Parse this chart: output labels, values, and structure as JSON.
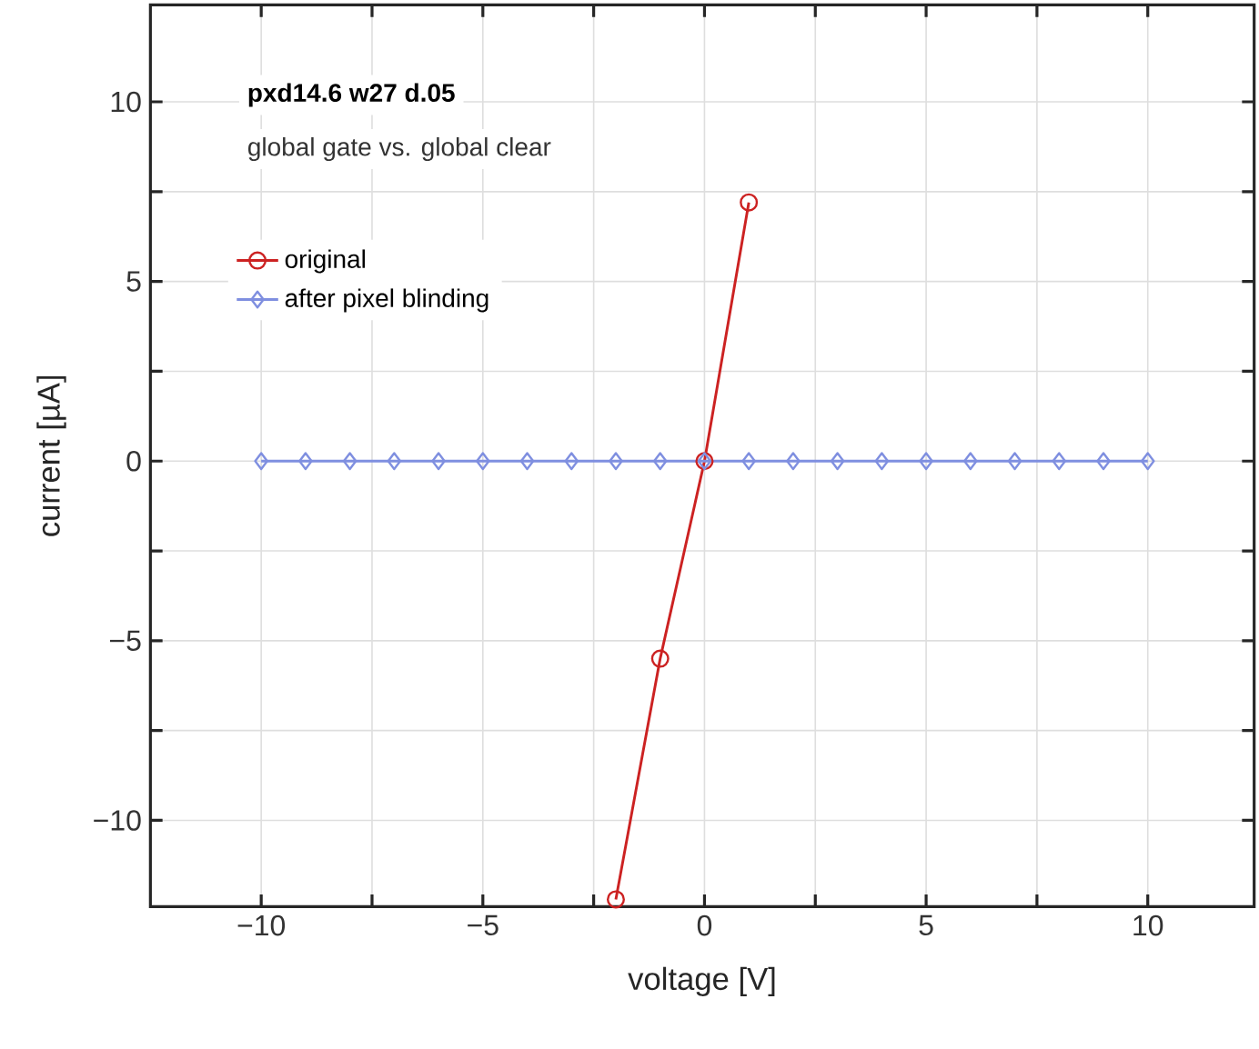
{
  "chart_data": {
    "type": "line",
    "title": "pxd14.6 w27 d.05",
    "subtitle": "global gate vs. global clear",
    "xlabel": "voltage [V]",
    "ylabel": "current [µA]",
    "xlim": [
      -12.5,
      12.4
    ],
    "ylim": [
      -12.4,
      12.7
    ],
    "xticks": [
      {
        "value": -10,
        "label": "−10"
      },
      {
        "value": -7.5,
        "label": null
      },
      {
        "value": -5,
        "label": "−5"
      },
      {
        "value": -2.5,
        "label": null
      },
      0,
      {
        "value": 2.5,
        "label": null
      },
      5,
      {
        "value": 7.5,
        "label": null
      },
      10
    ],
    "yticks": [
      {
        "value": -10,
        "label": "−10"
      },
      {
        "value": -7.5,
        "label": null
      },
      {
        "value": -5,
        "label": "−5"
      },
      {
        "value": -2.5,
        "label": null
      },
      0,
      {
        "value": 2.5,
        "label": null
      },
      5,
      {
        "value": 7.5,
        "label": null
      },
      10
    ],
    "grid": true,
    "legend": "top left",
    "line_style": "solid",
    "series": [
      {
        "name": "original",
        "color": "#cc2222",
        "marker": "circle",
        "x": [
          -2,
          -1,
          0,
          1
        ],
        "values": [
          -12.2,
          -5.5,
          0,
          7.2
        ]
      },
      {
        "name": "after pixel blinding",
        "color": "#7f8fe0",
        "marker": "diamond",
        "x": [
          -10,
          -9,
          -8,
          -7,
          -6,
          -5,
          -4,
          -3,
          -2,
          -1,
          0,
          1,
          2,
          3,
          4,
          5,
          6,
          7,
          8,
          9,
          10
        ],
        "values": [
          0,
          0,
          0,
          0,
          0,
          0,
          0,
          0,
          0,
          0,
          0,
          0,
          0,
          0,
          0,
          0,
          0,
          0,
          0,
          0,
          0
        ]
      }
    ]
  }
}
